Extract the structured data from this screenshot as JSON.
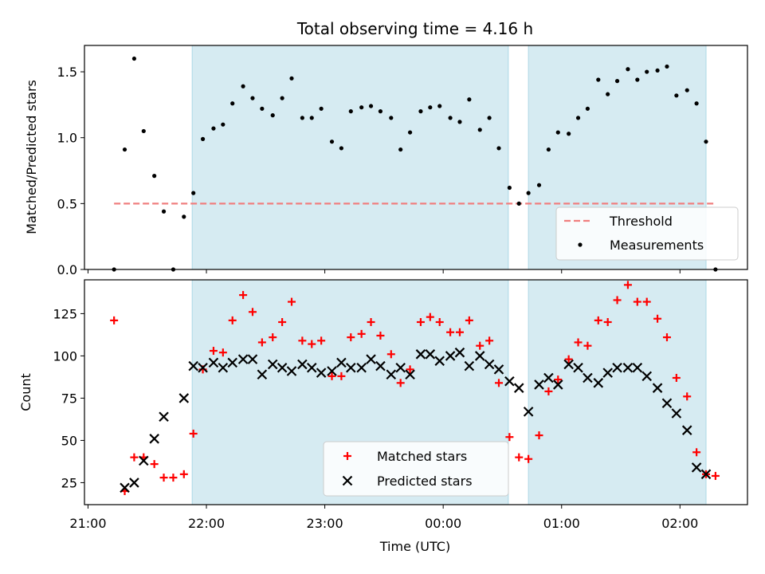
{
  "chart_data": [
    {
      "type": "scatter",
      "title": "Total observing time = 4.16 h",
      "xlabel": "",
      "ylabel": "Matched/Predicted stars",
      "ylim": [
        0,
        1.7
      ],
      "yticks": [
        "0.0",
        "0.5",
        "1.0",
        "1.5"
      ],
      "xlim_hours": [
        20.97,
        26.57
      ],
      "observing_windows": [
        [
          21.88,
          24.55
        ],
        [
          24.72,
          26.22
        ]
      ],
      "threshold": {
        "name": "Threshold",
        "value": 0.5,
        "x_range": [
          21.22,
          26.3
        ],
        "color": "#f07f7f"
      },
      "series": [
        {
          "name": "Measurements",
          "color": "#000000",
          "x": [
            21.22,
            21.31,
            21.39,
            21.47,
            21.56,
            21.64,
            21.72,
            21.81,
            21.89,
            21.97,
            22.06,
            22.14,
            22.22,
            22.31,
            22.39,
            22.47,
            22.56,
            22.64,
            22.72,
            22.81,
            22.89,
            22.97,
            23.06,
            23.14,
            23.22,
            23.31,
            23.39,
            23.47,
            23.56,
            23.64,
            23.72,
            23.81,
            23.89,
            23.97,
            24.06,
            24.14,
            24.22,
            24.31,
            24.39,
            24.47,
            24.56,
            24.64,
            24.72,
            24.81,
            24.89,
            24.97,
            25.06,
            25.14,
            25.22,
            25.31,
            25.39,
            25.47,
            25.56,
            25.64,
            25.72,
            25.81,
            25.89,
            25.97,
            26.06,
            26.14,
            26.22,
            26.3
          ],
          "y": [
            0.0,
            0.91,
            1.6,
            1.05,
            0.71,
            0.44,
            0.0,
            0.4,
            0.58,
            0.99,
            1.07,
            1.1,
            1.26,
            1.39,
            1.3,
            1.22,
            1.17,
            1.3,
            1.45,
            1.15,
            1.15,
            1.22,
            0.97,
            0.92,
            1.2,
            1.23,
            1.24,
            1.2,
            1.15,
            0.91,
            1.04,
            1.2,
            1.23,
            1.24,
            1.15,
            1.12,
            1.29,
            1.06,
            1.15,
            0.92,
            0.62,
            0.5,
            0.58,
            0.64,
            0.91,
            1.04,
            1.03,
            1.15,
            1.22,
            1.44,
            1.33,
            1.43,
            1.52,
            1.44,
            1.5,
            1.51,
            1.54,
            1.32,
            1.36,
            1.26,
            0.97,
            0.0
          ]
        }
      ],
      "legend": {
        "location": "lower right",
        "entries": [
          "Threshold",
          "Measurements"
        ]
      }
    },
    {
      "type": "scatter",
      "title": "",
      "xlabel": "Time (UTC)",
      "ylabel": "Count",
      "ylim": [
        12,
        145
      ],
      "yticks": [
        "25",
        "50",
        "75",
        "100",
        "125"
      ],
      "xticks": [
        "21:00",
        "22:00",
        "23:00",
        "00:00",
        "01:00",
        "02:00"
      ],
      "xlim_hours": [
        20.97,
        26.57
      ],
      "observing_windows": [
        [
          21.88,
          24.55
        ],
        [
          24.72,
          26.22
        ]
      ],
      "series": [
        {
          "name": "Matched stars",
          "marker": "plus",
          "color": "#ff0000",
          "x": [
            21.22,
            21.31,
            21.39,
            21.47,
            21.56,
            21.64,
            21.72,
            21.81,
            21.89,
            21.97,
            22.06,
            22.14,
            22.22,
            22.31,
            22.39,
            22.47,
            22.56,
            22.64,
            22.72,
            22.81,
            22.89,
            22.97,
            23.06,
            23.14,
            23.22,
            23.31,
            23.39,
            23.47,
            23.56,
            23.64,
            23.72,
            23.81,
            23.89,
            23.97,
            24.06,
            24.14,
            24.22,
            24.31,
            24.39,
            24.47,
            24.56,
            24.64,
            24.72,
            24.81,
            24.89,
            24.97,
            25.06,
            25.14,
            25.22,
            25.31,
            25.39,
            25.47,
            25.56,
            25.64,
            25.72,
            25.81,
            25.89,
            25.97,
            26.06,
            26.14,
            26.22,
            26.3
          ],
          "y": [
            121,
            20,
            40,
            40,
            36,
            28,
            28,
            30,
            54,
            92,
            103,
            102,
            121,
            136,
            126,
            108,
            111,
            120,
            132,
            109,
            107,
            109,
            88,
            88,
            111,
            113,
            120,
            112,
            101,
            84,
            92,
            120,
            123,
            120,
            114,
            114,
            121,
            106,
            109,
            84,
            52,
            40,
            39,
            53,
            79,
            86,
            98,
            108,
            106,
            121,
            120,
            133,
            142,
            132,
            132,
            122,
            111,
            87,
            76,
            43,
            30,
            29
          ]
        },
        {
          "name": "Predicted stars",
          "marker": "x",
          "color": "#000000",
          "x": [
            21.31,
            21.39,
            21.47,
            21.56,
            21.64,
            21.81,
            21.89,
            21.97,
            22.06,
            22.14,
            22.22,
            22.31,
            22.39,
            22.47,
            22.56,
            22.64,
            22.72,
            22.81,
            22.89,
            22.97,
            23.06,
            23.14,
            23.22,
            23.31,
            23.39,
            23.47,
            23.56,
            23.64,
            23.72,
            23.81,
            23.89,
            23.97,
            24.06,
            24.14,
            24.22,
            24.31,
            24.39,
            24.47,
            24.56,
            24.64,
            24.72,
            24.81,
            24.89,
            24.97,
            25.06,
            25.14,
            25.22,
            25.31,
            25.39,
            25.47,
            25.56,
            25.64,
            25.72,
            25.81,
            25.89,
            25.97,
            26.06,
            26.14,
            26.22
          ],
          "y": [
            22,
            25,
            38,
            51,
            64,
            75,
            94,
            93,
            96,
            93,
            96,
            98,
            98,
            89,
            95,
            93,
            91,
            95,
            93,
            90,
            91,
            96,
            93,
            93,
            98,
            94,
            89,
            93,
            89,
            101,
            101,
            97,
            100,
            102,
            94,
            100,
            95,
            92,
            85,
            81,
            67,
            83,
            87,
            83,
            95,
            93,
            87,
            84,
            90,
            93,
            93,
            93,
            88,
            81,
            72,
            66,
            56,
            34,
            30
          ]
        }
      ],
      "legend": {
        "location": "lower center",
        "entries": [
          "Matched stars",
          "Predicted stars"
        ]
      }
    }
  ],
  "colors": {
    "window_fill": "#add8e6",
    "threshold": "#f07f7f",
    "matched": "#ff0000",
    "predicted": "#000000",
    "measurement": "#000000"
  }
}
